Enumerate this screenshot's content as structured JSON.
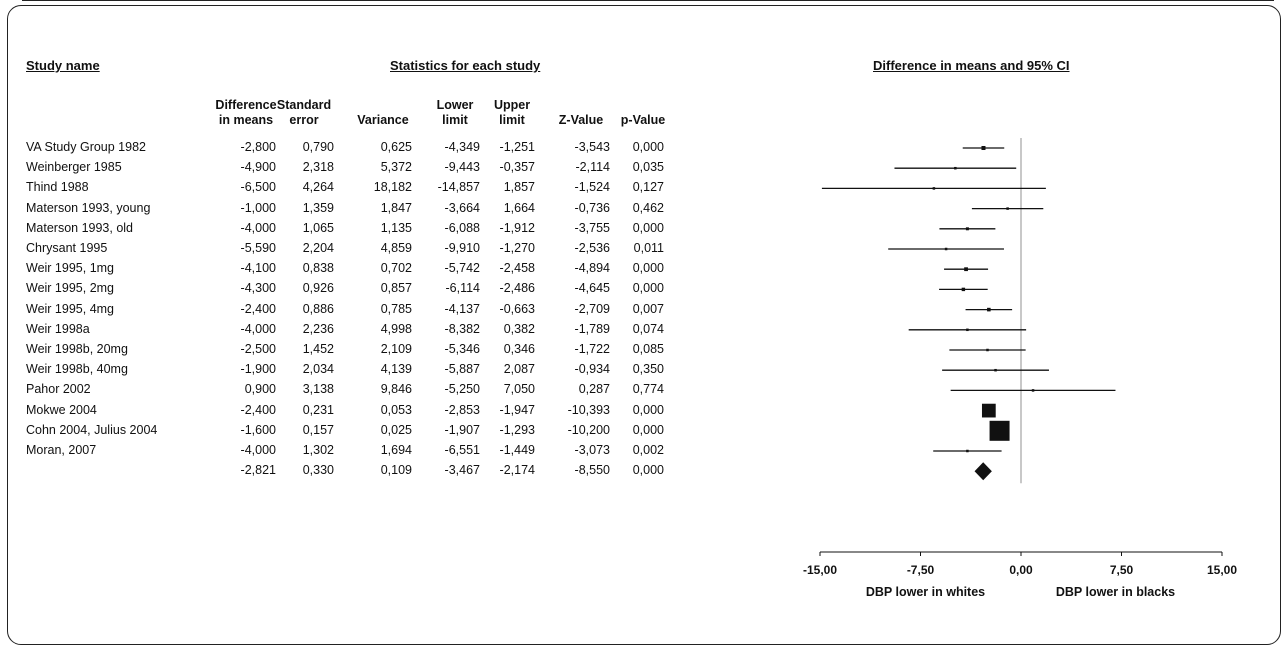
{
  "headers": {
    "study_name": "Study name",
    "statistics": "Statistics for each study",
    "ci_title": "Difference in means and 95% CI"
  },
  "columns": [
    {
      "key": "diff",
      "line1": "Difference",
      "line2": "in means"
    },
    {
      "key": "se",
      "line1": "Standard",
      "line2": "error"
    },
    {
      "key": "var",
      "line1": "",
      "line2": "Variance"
    },
    {
      "key": "lower",
      "line1": "Lower",
      "line2": "limit"
    },
    {
      "key": "upper",
      "line1": "Upper",
      "line2": "limit"
    },
    {
      "key": "z",
      "line1": "",
      "line2": "Z-Value"
    },
    {
      "key": "p",
      "line1": "",
      "line2": "p-Value"
    }
  ],
  "rows": [
    {
      "name": "VA Study Group 1982",
      "diff": "-2,800",
      "se": "0,790",
      "var": "0,625",
      "lower": "-4,349",
      "upper": "-1,251",
      "z": "-3,543",
      "p": "0,000"
    },
    {
      "name": "Weinberger 1985",
      "diff": "-4,900",
      "se": "2,318",
      "var": "5,372",
      "lower": "-9,443",
      "upper": "-0,357",
      "z": "-2,114",
      "p": "0,035"
    },
    {
      "name": "Thind 1988",
      "diff": "-6,500",
      "se": "4,264",
      "var": "18,182",
      "lower": "-14,857",
      "upper": "1,857",
      "z": "-1,524",
      "p": "0,127"
    },
    {
      "name": "Materson 1993, young",
      "diff": "-1,000",
      "se": "1,359",
      "var": "1,847",
      "lower": "-3,664",
      "upper": "1,664",
      "z": "-0,736",
      "p": "0,462"
    },
    {
      "name": "Materson 1993, old",
      "diff": "-4,000",
      "se": "1,065",
      "var": "1,135",
      "lower": "-6,088",
      "upper": "-1,912",
      "z": "-3,755",
      "p": "0,000"
    },
    {
      "name": "Chrysant 1995",
      "diff": "-5,590",
      "se": "2,204",
      "var": "4,859",
      "lower": "-9,910",
      "upper": "-1,270",
      "z": "-2,536",
      "p": "0,011"
    },
    {
      "name": "Weir 1995, 1mg",
      "diff": "-4,100",
      "se": "0,838",
      "var": "0,702",
      "lower": "-5,742",
      "upper": "-2,458",
      "z": "-4,894",
      "p": "0,000"
    },
    {
      "name": "Weir 1995, 2mg",
      "diff": "-4,300",
      "se": "0,926",
      "var": "0,857",
      "lower": "-6,114",
      "upper": "-2,486",
      "z": "-4,645",
      "p": "0,000"
    },
    {
      "name": "Weir 1995, 4mg",
      "diff": "-2,400",
      "se": "0,886",
      "var": "0,785",
      "lower": "-4,137",
      "upper": "-0,663",
      "z": "-2,709",
      "p": "0,007"
    },
    {
      "name": "Weir 1998a",
      "diff": "-4,000",
      "se": "2,236",
      "var": "4,998",
      "lower": "-8,382",
      "upper": "0,382",
      "z": "-1,789",
      "p": "0,074"
    },
    {
      "name": "Weir 1998b, 20mg",
      "diff": "-2,500",
      "se": "1,452",
      "var": "2,109",
      "lower": "-5,346",
      "upper": "0,346",
      "z": "-1,722",
      "p": "0,085"
    },
    {
      "name": "Weir 1998b, 40mg",
      "diff": "-1,900",
      "se": "2,034",
      "var": "4,139",
      "lower": "-5,887",
      "upper": "2,087",
      "z": "-0,934",
      "p": "0,350"
    },
    {
      "name": "Pahor  2002",
      "diff": "0,900",
      "se": "3,138",
      "var": "9,846",
      "lower": "-5,250",
      "upper": "7,050",
      "z": "0,287",
      "p": "0,774"
    },
    {
      "name": "Mokwe 2004",
      "diff": "-2,400",
      "se": "0,231",
      "var": "0,053",
      "lower": "-2,853",
      "upper": "-1,947",
      "z": "-10,393",
      "p": "0,000"
    },
    {
      "name": "Cohn 2004, Julius 2004",
      "diff": "-1,600",
      "se": "0,157",
      "var": "0,025",
      "lower": "-1,907",
      "upper": "-1,293",
      "z": "-10,200",
      "p": "0,000"
    },
    {
      "name": "Moran, 2007",
      "diff": "-4,000",
      "se": "1,302",
      "var": "1,694",
      "lower": "-6,551",
      "upper": "-1,449",
      "z": "-3,073",
      "p": "0,002"
    }
  ],
  "summary": {
    "name": "",
    "diff": "-2,821",
    "se": "0,330",
    "var": "0,109",
    "lower": "-3,467",
    "upper": "-2,174",
    "z": "-8,550",
    "p": "0,000"
  },
  "chart_data": {
    "type": "forest",
    "title": "Difference in means and 95% CI",
    "xlim": [
      -15,
      15
    ],
    "xticks": [
      -15,
      -7.5,
      0,
      7.5,
      15
    ],
    "xtick_labels": [
      "-15,00",
      "-7,50",
      "0,00",
      "7,50",
      "15,00"
    ],
    "left_label": "DBP lower in whites",
    "right_label": "DBP lower in blacks",
    "studies": [
      {
        "estimate": -2.8,
        "lower": -4.349,
        "upper": -1.251,
        "weight": 0.402
      },
      {
        "estimate": -4.9,
        "lower": -9.443,
        "upper": -0.357,
        "weight": 0.047
      },
      {
        "estimate": -6.5,
        "lower": -14.857,
        "upper": 1.857,
        "weight": 0.014
      },
      {
        "estimate": -1.0,
        "lower": -3.664,
        "upper": 1.664,
        "weight": 0.136
      },
      {
        "estimate": -4.0,
        "lower": -6.088,
        "upper": -1.912,
        "weight": 0.221
      },
      {
        "estimate": -5.59,
        "lower": -9.91,
        "upper": -1.27,
        "weight": 0.052
      },
      {
        "estimate": -4.1,
        "lower": -5.742,
        "upper": -2.458,
        "weight": 0.356
      },
      {
        "estimate": -4.3,
        "lower": -6.114,
        "upper": -2.486,
        "weight": 0.292
      },
      {
        "estimate": -2.4,
        "lower": -4.137,
        "upper": -0.663,
        "weight": 0.319
      },
      {
        "estimate": -4.0,
        "lower": -8.382,
        "upper": 0.382,
        "weight": 0.05
      },
      {
        "estimate": -2.5,
        "lower": -5.346,
        "upper": 0.346,
        "weight": 0.119
      },
      {
        "estimate": -1.9,
        "lower": -5.887,
        "upper": 2.087,
        "weight": 0.06
      },
      {
        "estimate": 0.9,
        "lower": -5.25,
        "upper": 7.05,
        "weight": 0.025
      },
      {
        "estimate": -2.4,
        "lower": -2.853,
        "upper": -1.947,
        "weight": 4.72
      },
      {
        "estimate": -1.6,
        "lower": -1.907,
        "upper": -1.293,
        "weight": 10.0
      },
      {
        "estimate": -4.0,
        "lower": -6.551,
        "upper": -1.449,
        "weight": 0.148
      }
    ],
    "summary": {
      "estimate": -2.821,
      "lower": -3.467,
      "upper": -2.174
    }
  }
}
